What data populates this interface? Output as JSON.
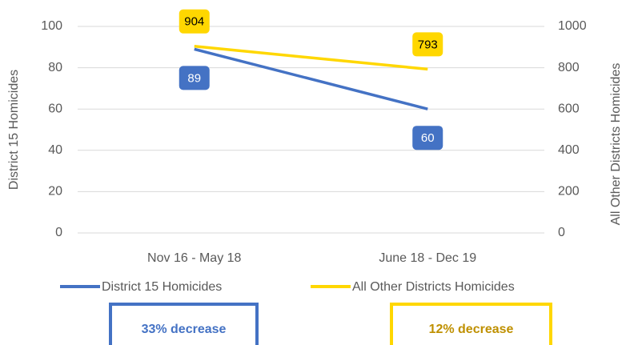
{
  "chart_data": {
    "type": "line",
    "categories": [
      "Nov 16 - May 18",
      "June 18 - Dec 19"
    ],
    "series": [
      {
        "name": "District 15 Homicides",
        "color": "#4472c4",
        "values": [
          89,
          60
        ]
      },
      {
        "name": "All Other Districts Homicides",
        "color": "#ffd700",
        "values": [
          904,
          793
        ],
        "axis": "y2"
      }
    ],
    "ylim": [
      0,
      100
    ],
    "yticks": [
      0,
      20,
      40,
      60,
      80,
      100
    ],
    "y2lim": [
      0,
      1000
    ],
    "y2ticks": [
      0,
      200,
      400,
      600,
      800,
      1000
    ],
    "ylabel": "District 15 Homicides",
    "y2label": "All Other Districts Homicides",
    "annotations": [
      "33% decrease",
      "12% decrease"
    ],
    "grid": true,
    "legend": "bottom"
  }
}
